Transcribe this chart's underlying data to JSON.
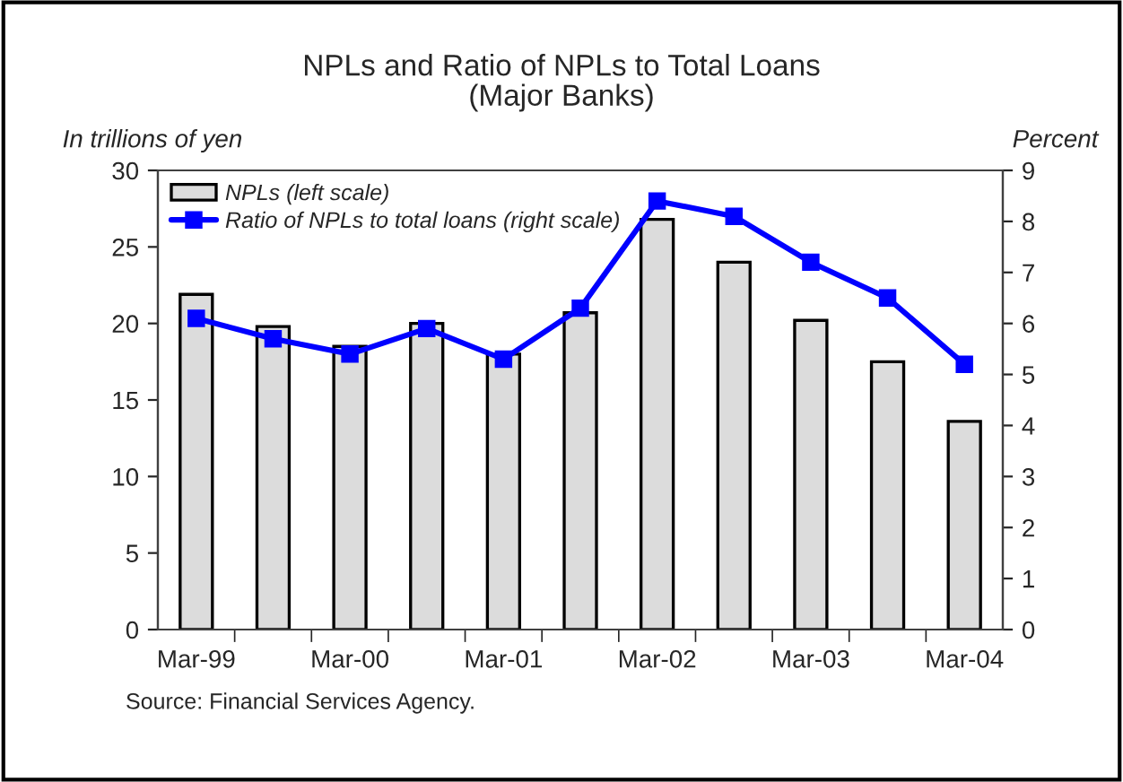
{
  "chart_data": {
    "type": "bar",
    "title": "NPLs and Ratio of NPLs to Total Loans\n(Major Banks)",
    "ylabel": "In trillions of yen",
    "y2label": "Percent",
    "categories": [
      "Mar-99",
      null,
      "Mar-00",
      null,
      "Mar-01",
      null,
      "Mar-02",
      null,
      "Mar-03",
      null,
      "Mar-04"
    ],
    "series": [
      {
        "name": "NPLs (left scale)",
        "color": "#dcdcdc",
        "values": [
          21.9,
          19.8,
          18.5,
          20.0,
          18.0,
          20.7,
          26.8,
          24.0,
          20.2,
          17.5,
          13.6
        ]
      },
      {
        "name": "Ratio of NPLs to total loans (right scale)",
        "type": "line",
        "axis": "y2",
        "color": "#0000ff",
        "marker": "square",
        "values": [
          6.1,
          5.7,
          5.4,
          5.9,
          5.3,
          6.3,
          8.4,
          8.1,
          7.2,
          6.5,
          5.2
        ]
      }
    ],
    "ylim": [
      0,
      30
    ],
    "yticks": [
      0,
      5,
      10,
      15,
      20,
      25,
      30
    ],
    "y2lim": [
      0,
      9
    ],
    "y2ticks": [
      0,
      1,
      2,
      3,
      4,
      5,
      6,
      7,
      8,
      9
    ],
    "grid": false,
    "legend": "top left",
    "annotations": [
      "Source: Financial Services Agency."
    ]
  }
}
